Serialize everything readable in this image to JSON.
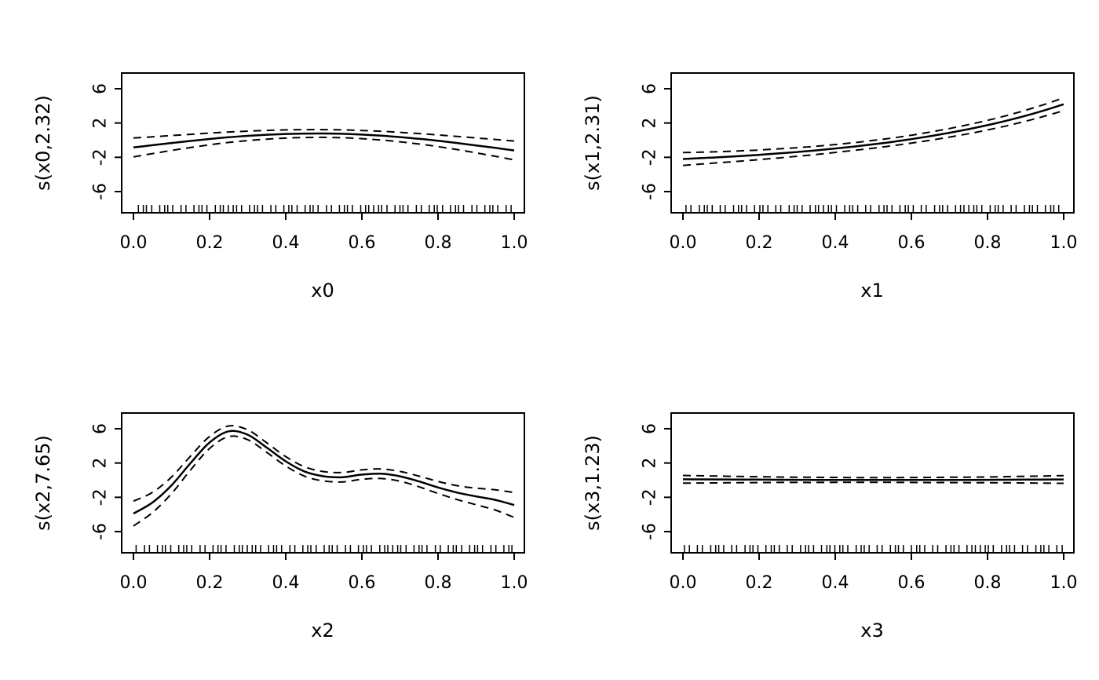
{
  "figure": {
    "background": "#ffffff",
    "line_color": "#000000",
    "layout": "2x2-grid",
    "description": "GAM smooth term plots with 95% confidence bands and data rug"
  },
  "chart_data": [
    {
      "type": "line",
      "title": "",
      "xlabel": "x0",
      "ylabel": "s(x0,2.32)",
      "xlim": [
        0,
        1
      ],
      "ylim": [
        -6,
        6
      ],
      "grid": false,
      "legend": "none",
      "xticks": [
        "0.0",
        "0.2",
        "0.4",
        "0.6",
        "0.8",
        "1.0"
      ],
      "yticks": [
        "-6",
        "-2",
        "2",
        "6"
      ],
      "x": [
        0,
        0.05,
        0.1,
        0.15,
        0.2,
        0.25,
        0.3,
        0.35,
        0.4,
        0.45,
        0.5,
        0.55,
        0.6,
        0.65,
        0.7,
        0.75,
        0.8,
        0.85,
        0.9,
        0.95,
        1
      ],
      "series": [
        {
          "name": "estimate",
          "dashed": false,
          "values": [
            -0.85,
            -0.59,
            -0.33,
            -0.09,
            0.14,
            0.34,
            0.5,
            0.63,
            0.72,
            0.77,
            0.78,
            0.74,
            0.65,
            0.53,
            0.36,
            0.16,
            -0.07,
            -0.33,
            -0.61,
            -0.9,
            -1.2
          ]
        },
        {
          "name": "upper-ci",
          "dashed": true,
          "values": [
            0.25,
            0.39,
            0.54,
            0.68,
            0.82,
            0.95,
            1.05,
            1.14,
            1.2,
            1.23,
            1.23,
            1.2,
            1.13,
            1.04,
            0.91,
            0.77,
            0.61,
            0.44,
            0.26,
            0.08,
            -0.1
          ]
        },
        {
          "name": "lower-ci",
          "dashed": true,
          "values": [
            -1.95,
            -1.57,
            -1.2,
            -0.86,
            -0.54,
            -0.27,
            -0.05,
            0.12,
            0.24,
            0.31,
            0.33,
            0.28,
            0.17,
            0.02,
            -0.19,
            -0.45,
            -0.75,
            -1.1,
            -1.48,
            -1.88,
            -2.3
          ]
        }
      ],
      "rug": [
        0.618,
        0.236,
        0.854,
        0.472,
        0.09,
        0.708,
        0.326,
        0.944,
        0.562,
        0.18,
        0.798,
        0.416,
        0.034,
        0.652,
        0.271,
        0.889,
        0.507,
        0.125,
        0.743,
        0.361,
        0.979,
        0.597,
        0.215,
        0.833,
        0.451,
        0.069,
        0.687,
        0.305,
        0.923,
        0.541,
        0.159,
        0.777,
        0.395,
        0.013,
        0.631,
        0.249,
        0.867,
        0.485,
        0.103,
        0.721,
        0.339,
        0.957,
        0.575,
        0.193,
        0.812,
        0.43,
        0.048,
        0.666,
        0.284,
        0.902,
        0.52,
        0.138,
        0.756,
        0.374,
        0.992,
        0.61,
        0.228,
        0.846,
        0.464,
        0.082,
        0.7,
        0.318,
        0.936,
        0.554,
        0.172,
        0.79,
        0.408,
        0.026,
        0.644,
        0.262
      ]
    },
    {
      "type": "line",
      "title": "",
      "xlabel": "x1",
      "ylabel": "s(x1,2.31)",
      "xlim": [
        0,
        1
      ],
      "ylim": [
        -6,
        6
      ],
      "grid": false,
      "legend": "none",
      "xticks": [
        "0.0",
        "0.2",
        "0.4",
        "0.6",
        "0.8",
        "1.0"
      ],
      "yticks": [
        "-6",
        "-2",
        "2",
        "6"
      ],
      "x": [
        0,
        0.05,
        0.1,
        0.15,
        0.2,
        0.25,
        0.3,
        0.35,
        0.4,
        0.45,
        0.5,
        0.55,
        0.6,
        0.65,
        0.7,
        0.75,
        0.8,
        0.85,
        0.9,
        0.95,
        1
      ],
      "series": [
        {
          "name": "estimate",
          "dashed": false,
          "values": [
            -2.2,
            -2.09,
            -1.98,
            -1.85,
            -1.71,
            -1.55,
            -1.38,
            -1.19,
            -0.97,
            -0.74,
            -0.48,
            -0.2,
            0.12,
            0.47,
            0.86,
            1.28,
            1.75,
            2.27,
            2.85,
            3.49,
            4.19
          ]
        },
        {
          "name": "upper-ci",
          "dashed": true,
          "values": [
            -1.45,
            -1.4,
            -1.34,
            -1.25,
            -1.15,
            -1.02,
            -0.88,
            -0.71,
            -0.51,
            -0.29,
            -0.03,
            0.25,
            0.58,
            0.95,
            1.36,
            1.81,
            2.31,
            2.87,
            3.49,
            4.18,
            4.94
          ]
        },
        {
          "name": "lower-ci",
          "dashed": true,
          "values": [
            -2.95,
            -2.78,
            -2.62,
            -2.45,
            -2.27,
            -2.08,
            -1.88,
            -1.67,
            -1.43,
            -1.19,
            -0.93,
            -0.65,
            -0.34,
            -0.01,
            0.36,
            0.75,
            1.19,
            1.67,
            2.21,
            2.8,
            3.44
          ]
        }
      ],
      "rug": [
        0.382,
        0.764,
        0.146,
        0.528,
        0.91,
        0.292,
        0.674,
        0.056,
        0.438,
        0.82,
        0.202,
        0.584,
        0.966,
        0.348,
        0.729,
        0.111,
        0.493,
        0.875,
        0.257,
        0.639,
        0.021,
        0.403,
        0.785,
        0.167,
        0.549,
        0.931,
        0.313,
        0.695,
        0.077,
        0.459,
        0.841,
        0.223,
        0.605,
        0.987,
        0.369,
        0.751,
        0.133,
        0.515,
        0.897,
        0.279,
        0.661,
        0.043,
        0.425,
        0.807,
        0.188,
        0.57,
        0.952,
        0.334,
        0.716,
        0.098,
        0.48,
        0.862,
        0.244,
        0.626,
        0.008,
        0.39,
        0.772,
        0.154,
        0.536,
        0.918,
        0.3,
        0.682,
        0.064,
        0.446,
        0.828,
        0.21,
        0.592,
        0.974,
        0.356,
        0.738
      ]
    },
    {
      "type": "line",
      "title": "",
      "xlabel": "x2",
      "ylabel": "s(x2,7.65)",
      "xlim": [
        0,
        1
      ],
      "ylim": [
        -6,
        6
      ],
      "grid": false,
      "legend": "none",
      "xticks": [
        "0.0",
        "0.2",
        "0.4",
        "0.6",
        "0.8",
        "1.0"
      ],
      "yticks": [
        "-6",
        "-2",
        "2",
        "6"
      ],
      "x": [
        0,
        0.05,
        0.1,
        0.15,
        0.2,
        0.25,
        0.3,
        0.35,
        0.4,
        0.45,
        0.5,
        0.55,
        0.6,
        0.65,
        0.7,
        0.75,
        0.8,
        0.85,
        0.9,
        0.95,
        1
      ],
      "series": [
        {
          "name": "estimate",
          "dashed": false,
          "values": [
            -3.9,
            -2.6,
            -0.6,
            2,
            4.4,
            5.7,
            5.3,
            3.8,
            2.2,
            1,
            0.45,
            0.35,
            0.65,
            0.75,
            0.45,
            -0.15,
            -0.85,
            -1.45,
            -1.9,
            -2.3,
            -2.9
          ]
        },
        {
          "name": "upper-ci",
          "dashed": true,
          "values": [
            -2.45,
            -1.42,
            0.37,
            2.81,
            5.1,
            6.32,
            5.87,
            4.36,
            2.75,
            1.55,
            1,
            0.9,
            1.2,
            1.31,
            1.02,
            0.47,
            -0.15,
            -0.64,
            -0.93,
            -1.12,
            -1.45
          ]
        },
        {
          "name": "lower-ci",
          "dashed": true,
          "values": [
            -5.35,
            -3.78,
            -1.57,
            1.19,
            3.7,
            5.08,
            4.73,
            3.24,
            1.65,
            0.45,
            -0.1,
            -0.2,
            0.1,
            0.19,
            -0.12,
            -0.77,
            -1.55,
            -2.26,
            -2.87,
            -3.48,
            -4.35
          ]
        }
      ],
      "rug": [
        0.668,
        0.286,
        0.904,
        0.522,
        0.14,
        0.758,
        0.376,
        0.994,
        0.612,
        0.23,
        0.848,
        0.466,
        0.084,
        0.702,
        0.321,
        0.939,
        0.557,
        0.175,
        0.793,
        0.411,
        0.029,
        0.647,
        0.265,
        0.883,
        0.501,
        0.119,
        0.737,
        0.355,
        0.973,
        0.591,
        0.209,
        0.827,
        0.445,
        0.063,
        0.681,
        0.299,
        0.917,
        0.535,
        0.153,
        0.771,
        0.389,
        0.007,
        0.625,
        0.243,
        0.862,
        0.48,
        0.098,
        0.716,
        0.334,
        0.952,
        0.57,
        0.188,
        0.806,
        0.424,
        0.042,
        0.66,
        0.278,
        0.896,
        0.514,
        0.132,
        0.75,
        0.368,
        0.986,
        0.604,
        0.222,
        0.84,
        0.458,
        0.076,
        0.694,
        0.312
      ]
    },
    {
      "type": "line",
      "title": "",
      "xlabel": "x3",
      "ylabel": "s(x3,1.23)",
      "xlim": [
        0,
        1
      ],
      "ylim": [
        -6,
        6
      ],
      "grid": false,
      "legend": "none",
      "xticks": [
        "0.0",
        "0.2",
        "0.4",
        "0.6",
        "0.8",
        "1.0"
      ],
      "yticks": [
        "-6",
        "-2",
        "2",
        "6"
      ],
      "x": [
        0,
        0.05,
        0.1,
        0.15,
        0.2,
        0.25,
        0.3,
        0.35,
        0.4,
        0.45,
        0.5,
        0.55,
        0.6,
        0.65,
        0.7,
        0.75,
        0.8,
        0.85,
        0.9,
        0.95,
        1
      ],
      "series": [
        {
          "name": "estimate",
          "dashed": false,
          "values": [
            0.1,
            0.09,
            0.08,
            0.07,
            0.06,
            0.05,
            0.04,
            0.03,
            0.03,
            0.02,
            0.02,
            0.02,
            0.02,
            0.02,
            0.03,
            0.03,
            0.04,
            0.05,
            0.06,
            0.07,
            0.08
          ]
        },
        {
          "name": "upper-ci",
          "dashed": true,
          "values": [
            0.55,
            0.51,
            0.47,
            0.43,
            0.4,
            0.37,
            0.35,
            0.33,
            0.32,
            0.3,
            0.3,
            0.3,
            0.31,
            0.32,
            0.34,
            0.35,
            0.38,
            0.41,
            0.45,
            0.49,
            0.53
          ]
        },
        {
          "name": "lower-ci",
          "dashed": true,
          "values": [
            -0.35,
            -0.33,
            -0.31,
            -0.29,
            -0.28,
            -0.27,
            -0.27,
            -0.27,
            -0.26,
            -0.26,
            -0.26,
            -0.26,
            -0.27,
            -0.28,
            -0.28,
            -0.29,
            -0.3,
            -0.31,
            -0.33,
            -0.35,
            -0.37
          ]
        }
      ],
      "rug": [
        0.412,
        0.794,
        0.176,
        0.558,
        0.94,
        0.322,
        0.704,
        0.086,
        0.468,
        0.85,
        0.232,
        0.614,
        0.996,
        0.378,
        0.759,
        0.141,
        0.523,
        0.905,
        0.287,
        0.669,
        0.051,
        0.433,
        0.815,
        0.197,
        0.579,
        0.961,
        0.343,
        0.725,
        0.107,
        0.489,
        0.871,
        0.253,
        0.635,
        0.017,
        0.399,
        0.781,
        0.163,
        0.545,
        0.927,
        0.309,
        0.691,
        0.073,
        0.455,
        0.837,
        0.218,
        0.6,
        0.982,
        0.364,
        0.746,
        0.128,
        0.51,
        0.892,
        0.274,
        0.656,
        0.038,
        0.42,
        0.802,
        0.184,
        0.566,
        0.948,
        0.33,
        0.712,
        0.094,
        0.476,
        0.858,
        0.24,
        0.622,
        0.004,
        0.386,
        0.768
      ]
    }
  ]
}
